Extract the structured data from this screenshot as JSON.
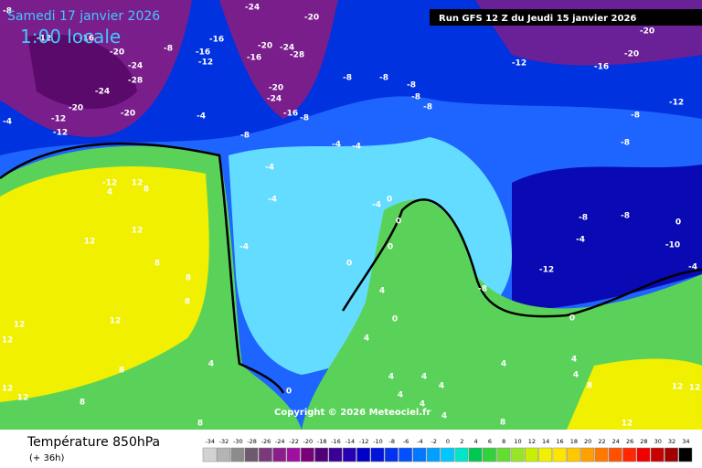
{
  "header": {
    "date": "Samedi 17 janvier 2026",
    "time": "1:00 locale",
    "run": "Run GFS 12 Z du Jeudi 15 janvier 2026",
    "copyright": "Copyright © 2026 Meteociel.fr"
  },
  "footer": {
    "title": "Température 850hPa",
    "lead": "(+ 36h)"
  },
  "legend": {
    "values": [
      -34,
      -32,
      -30,
      -28,
      -26,
      -24,
      -22,
      -20,
      -18,
      -16,
      -14,
      -12,
      -10,
      -8,
      -6,
      -4,
      -2,
      0,
      2,
      4,
      6,
      8,
      10,
      12,
      14,
      16,
      18,
      20,
      22,
      24,
      26,
      28,
      30,
      32,
      34
    ],
    "colors": [
      "#d2d2d2",
      "#b4b4b4",
      "#8c8c8c",
      "#6e5a6e",
      "#7a3a7a",
      "#8c1e8c",
      "#a010a0",
      "#780078",
      "#500078",
      "#3c0096",
      "#2800b4",
      "#0000c8",
      "#0014dc",
      "#0032f0",
      "#0050ff",
      "#0078ff",
      "#00a0ff",
      "#00c8ff",
      "#00e6c8",
      "#00c850",
      "#32d23c",
      "#64dc32",
      "#96e628",
      "#c8f000",
      "#f0f000",
      "#ffe600",
      "#ffc800",
      "#ffa000",
      "#ff7800",
      "#ff5000",
      "#ff2800",
      "#f00000",
      "#c80000",
      "#a00000",
      "#000000"
    ]
  },
  "contour_labels": [
    -8,
    -12,
    -16,
    -20,
    -24,
    -28,
    -24,
    -20,
    -20,
    -12,
    -12,
    -4,
    -8,
    -12,
    -16,
    -16,
    -24,
    -20,
    -24,
    -28,
    -16,
    -20,
    -24,
    -16,
    -8,
    -20,
    -8,
    -8,
    -8,
    -8,
    -8,
    -12,
    -16,
    -20,
    -20,
    -12,
    -8,
    -8,
    -8,
    -4,
    -4,
    -4,
    -4,
    -4,
    -4,
    -4,
    0,
    0,
    0,
    0,
    -8,
    -4,
    -12,
    -8,
    -8,
    0,
    -10,
    -4,
    0,
    4,
    0,
    4,
    0,
    -12,
    12,
    4,
    8,
    12,
    12,
    8,
    8,
    12,
    12,
    12,
    8,
    4,
    8,
    12,
    12,
    8,
    8,
    4,
    4,
    4,
    4,
    4,
    4,
    4,
    4,
    8,
    12,
    12,
    12,
    8,
    4
  ]
}
